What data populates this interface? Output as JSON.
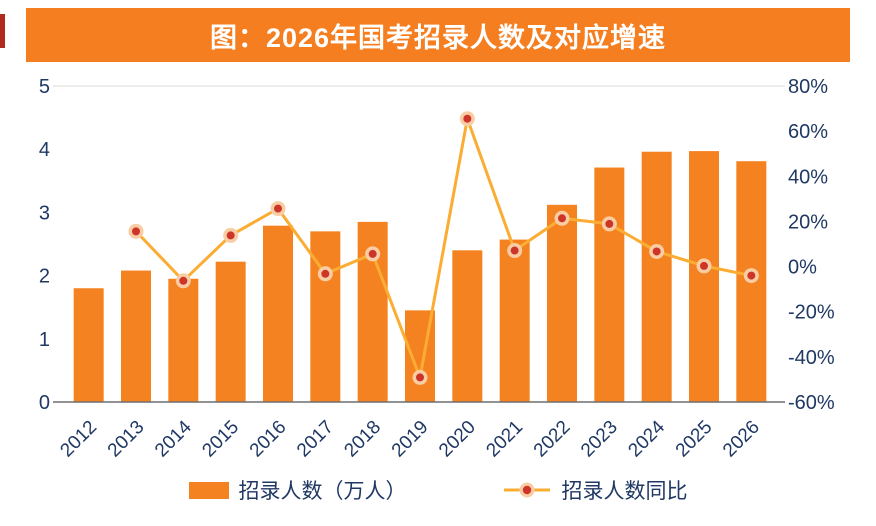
{
  "title": "图：2026年国考招录人数及对应增速",
  "legend": {
    "bar_label": "招录人数（万人）",
    "line_label": "招录人数同比"
  },
  "colors": {
    "bar": "#F58220",
    "line": "#FBAD33",
    "marker_fill": "#CD3529",
    "marker_ring": "#F9CDA4",
    "title_bg": "#F57E20",
    "title_text": "#FFFFFF",
    "axis_text": "#1F3864",
    "axis_line": "#6E6E6E",
    "gridline": "#DADADA",
    "accent_mark": "#B02A1E"
  },
  "chart_data": {
    "type": "bar",
    "title": "图：2026年国考招录人数及对应增速",
    "categories": [
      "2012",
      "2013",
      "2014",
      "2015",
      "2016",
      "2017",
      "2018",
      "2019",
      "2020",
      "2021",
      "2022",
      "2023",
      "2024",
      "2025",
      "2026"
    ],
    "series": [
      {
        "name": "招录人数（万人）",
        "type": "bar",
        "axis": "left",
        "values": [
          1.8,
          2.08,
          1.95,
          2.22,
          2.79,
          2.7,
          2.85,
          1.45,
          2.4,
          2.57,
          3.12,
          3.71,
          3.96,
          3.97,
          3.81
        ]
      },
      {
        "name": "招录人数同比",
        "type": "line",
        "axis": "right",
        "unit": "%",
        "values": [
          null,
          15.6,
          -6.3,
          13.8,
          25.7,
          -3.2,
          5.6,
          -49.1,
          65.5,
          7.1,
          21.4,
          18.9,
          6.7,
          0.3,
          -4.0
        ]
      }
    ],
    "left_axis": {
      "min": 0,
      "max": 5,
      "tick_values": [
        5,
        4,
        3,
        2,
        1,
        0
      ],
      "tick_labels": [
        "5",
        "4",
        "3",
        "2",
        "1",
        "0"
      ]
    },
    "right_axis": {
      "min": -60,
      "max": 80,
      "tick_values": [
        80,
        60,
        40,
        20,
        0,
        -20,
        -40,
        -60
      ],
      "tick_labels": [
        "80%",
        "60%",
        "40%",
        "20%",
        "0%",
        "-20%",
        "-40%",
        "-60%"
      ]
    },
    "legend_position": "bottom",
    "grid": false
  }
}
